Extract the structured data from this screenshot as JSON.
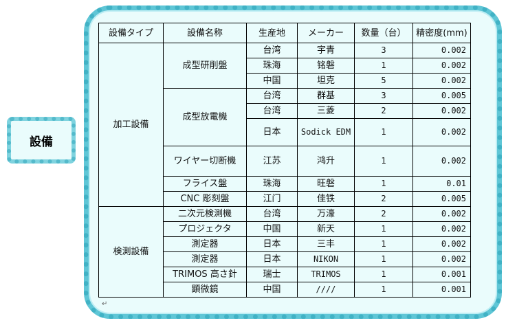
{
  "side_label": "設備",
  "headers": [
    "設備タイプ",
    "設備名称",
    "生産地",
    "メーカー",
    "数量（台）",
    "精密度(mm)"
  ],
  "groups": [
    {
      "type": "加工設備",
      "equipment": [
        {
          "name": "成型研削盤",
          "rows": [
            [
              "台湾",
              "宇青",
              "3",
              "0.002"
            ],
            [
              "珠海",
              "铭磐",
              "1",
              "0.002"
            ],
            [
              "中国",
              "坦克",
              "5",
              "0.002"
            ]
          ]
        },
        {
          "name": "成型放電機",
          "rows": [
            [
              "台湾",
              "群基",
              "3",
              "0.005"
            ],
            [
              "台湾",
              "三菱",
              "2",
              "0.002"
            ],
            [
              "日本",
              "Sodick EDM",
              "1",
              "0.002"
            ]
          ]
        },
        {
          "name": "ワイヤー切断機",
          "rows": [
            [
              "江苏",
              "鸿升",
              "1",
              "0.002"
            ]
          ]
        },
        {
          "name": "フライス盤",
          "rows": [
            [
              "珠海",
              "旺磐",
              "1",
              "0.01"
            ]
          ]
        },
        {
          "name": "CNC 彫刻盤",
          "rows": [
            [
              "江门",
              "佳铁",
              "2",
              "0.005"
            ]
          ]
        }
      ]
    },
    {
      "type": "検測設備",
      "equipment": [
        {
          "name": "二次元検測機",
          "rows": [
            [
              "台湾",
              "万濠",
              "2",
              "0.002"
            ]
          ]
        },
        {
          "name": "プロジェクタ",
          "rows": [
            [
              "中国",
              "新天",
              "1",
              "0.002"
            ]
          ]
        },
        {
          "name": "測定器",
          "rows": [
            [
              "日本",
              "三丰",
              "1",
              "0.002"
            ]
          ]
        },
        {
          "name": "測定器",
          "rows": [
            [
              "日本",
              "NIKON",
              "1",
              "0.002"
            ]
          ]
        },
        {
          "name": "TRIMOS 高さ針",
          "rows": [
            [
              "瑞士",
              "TRIMOS",
              "1",
              "0.001"
            ]
          ]
        },
        {
          "name": "顕微鏡",
          "rows": [
            [
              "中国",
              "////",
              "1",
              "0.001"
            ]
          ]
        }
      ]
    }
  ],
  "colors": {
    "frame": "#5fc6d6",
    "fill": "#eafcfc"
  }
}
